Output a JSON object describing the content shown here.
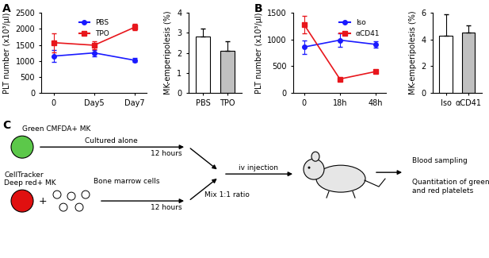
{
  "panel_labels": [
    "A",
    "B",
    "C"
  ],
  "chart_data": [
    {
      "type": "line",
      "panel": "A",
      "y_label": "PLT number (x10³/μl)",
      "categories": [
        "0",
        "Day5",
        "Day7"
      ],
      "ylim": [
        0,
        2500
      ],
      "yticks": [
        0,
        500,
        1000,
        1500,
        2000,
        2500
      ],
      "legend": "upper center",
      "series": [
        {
          "name": "PBS",
          "color": "#1a1aff",
          "marker": "circle",
          "values": [
            1150,
            1250,
            1020
          ],
          "errors": [
            180,
            100,
            60
          ]
        },
        {
          "name": "TPO",
          "color": "#e8161c",
          "marker": "square",
          "values": [
            1570,
            1490,
            2050
          ],
          "errors": [
            300,
            120,
            100
          ]
        }
      ]
    },
    {
      "type": "bar",
      "panel": "A",
      "y_label": "MK-emperipolesis (%)",
      "categories": [
        "PBS",
        "TPO"
      ],
      "values": [
        2.8,
        2.1
      ],
      "errors": [
        0.4,
        0.5
      ],
      "colors": [
        "#ffffff",
        "#c0c0c0"
      ],
      "ylim": [
        0,
        4
      ],
      "yticks": [
        0,
        1,
        2,
        3,
        4
      ]
    },
    {
      "type": "line",
      "panel": "B",
      "y_label": "PLT number (x10³/μl)",
      "categories": [
        "0",
        "18h",
        "48h"
      ],
      "ylim": [
        0,
        1500
      ],
      "yticks": [
        0,
        500,
        1000,
        1500
      ],
      "legend": "upper right",
      "series": [
        {
          "name": "Iso",
          "color": "#1a1aff",
          "marker": "circle",
          "values": [
            860,
            990,
            910
          ],
          "errors": [
            130,
            120,
            60
          ]
        },
        {
          "name": "αCD41",
          "color": "#e8161c",
          "marker": "square",
          "values": [
            1280,
            260,
            400
          ],
          "errors": [
            170,
            15,
            20
          ]
        }
      ]
    },
    {
      "type": "bar",
      "panel": "B",
      "y_label": "MK-emperipolesis (%)",
      "categories": [
        "Iso",
        "αCD41"
      ],
      "values": [
        4.3,
        4.55
      ],
      "errors": [
        1.6,
        0.5
      ],
      "colors": [
        "#ffffff",
        "#c0c0c0"
      ],
      "ylim": [
        0,
        6
      ],
      "yticks": [
        0,
        2,
        4,
        6
      ]
    }
  ],
  "diagram": {
    "green_mk": "Green CMFDA+ MK",
    "cultured_alone": "Cultured alone",
    "hours_top": "12 hours",
    "red_mk": "CellTracker\nDeep red+ MK",
    "plus": "+",
    "bone_marrow": "Bone marrow cells",
    "hours_bottom": "12 hours",
    "mix": "Mix 1:1 ratio",
    "injection": "iv injection",
    "sampling": "Blood sampling",
    "quantitation": "Quantitation of green\nand red platelets"
  }
}
